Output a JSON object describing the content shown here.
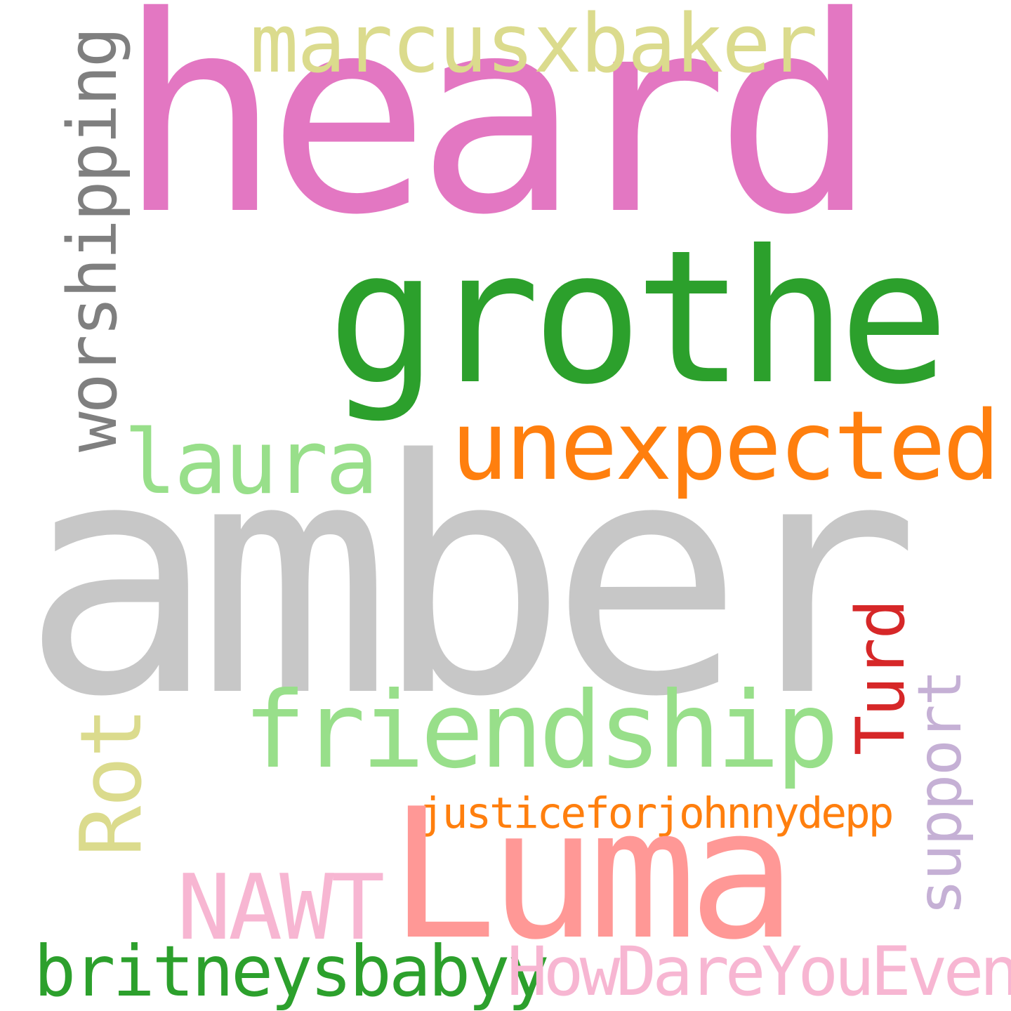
{
  "words": {
    "heard": {
      "text": "heard",
      "color": "#e377c2"
    },
    "marcusxbaker": {
      "text": "marcusxbaker",
      "color": "#dbdb8d"
    },
    "worshipping": {
      "text": "worshipping",
      "color": "#7f7f7f"
    },
    "grothe": {
      "text": "grothe",
      "color": "#2ca02c"
    },
    "unexpected": {
      "text": "unexpected",
      "color": "#ff7f0e"
    },
    "laura": {
      "text": "laura",
      "color": "#98df8a"
    },
    "amber": {
      "text": "amber",
      "color": "#c7c7c7"
    },
    "turd": {
      "text": "Turd",
      "color": "#d62728"
    },
    "friendship": {
      "text": "friendship",
      "color": "#98df8a"
    },
    "rot": {
      "text": "Rot",
      "color": "#dbdb8d"
    },
    "support": {
      "text": "support",
      "color": "#c5b0d5"
    },
    "justiceforjohnnydepp": {
      "text": "justiceforjohnnydepp",
      "color": "#ff7f0e"
    },
    "luma": {
      "text": "Luma",
      "color": "#ff9896"
    },
    "nawt": {
      "text": "NAWT",
      "color": "#f7b6d2"
    },
    "britneysbabyy": {
      "text": "britneysbabyy",
      "color": "#2ca02c"
    },
    "howdareyoueven": {
      "text": "HowDareYouEven",
      "color": "#f7b6d2"
    }
  }
}
